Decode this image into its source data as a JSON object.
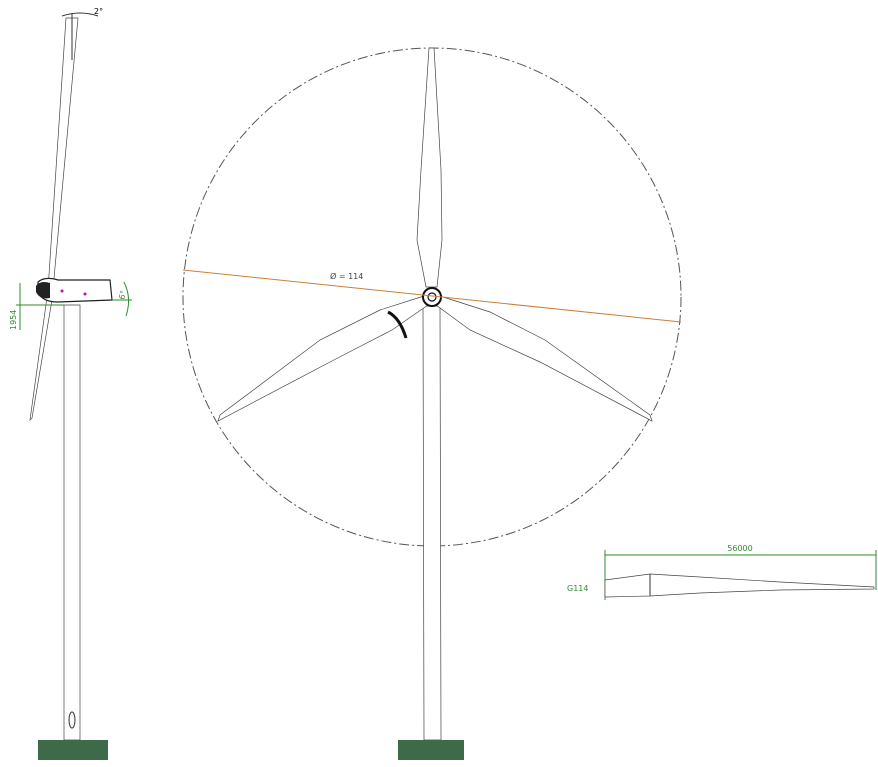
{
  "side_view": {
    "tilt_angle": "2°",
    "hub_offset": "1954",
    "cone_angle": "6°"
  },
  "front_view": {
    "rotor_diameter": "Ø = 114"
  },
  "blade_view": {
    "blade_length": "56000",
    "model": "G114"
  }
}
